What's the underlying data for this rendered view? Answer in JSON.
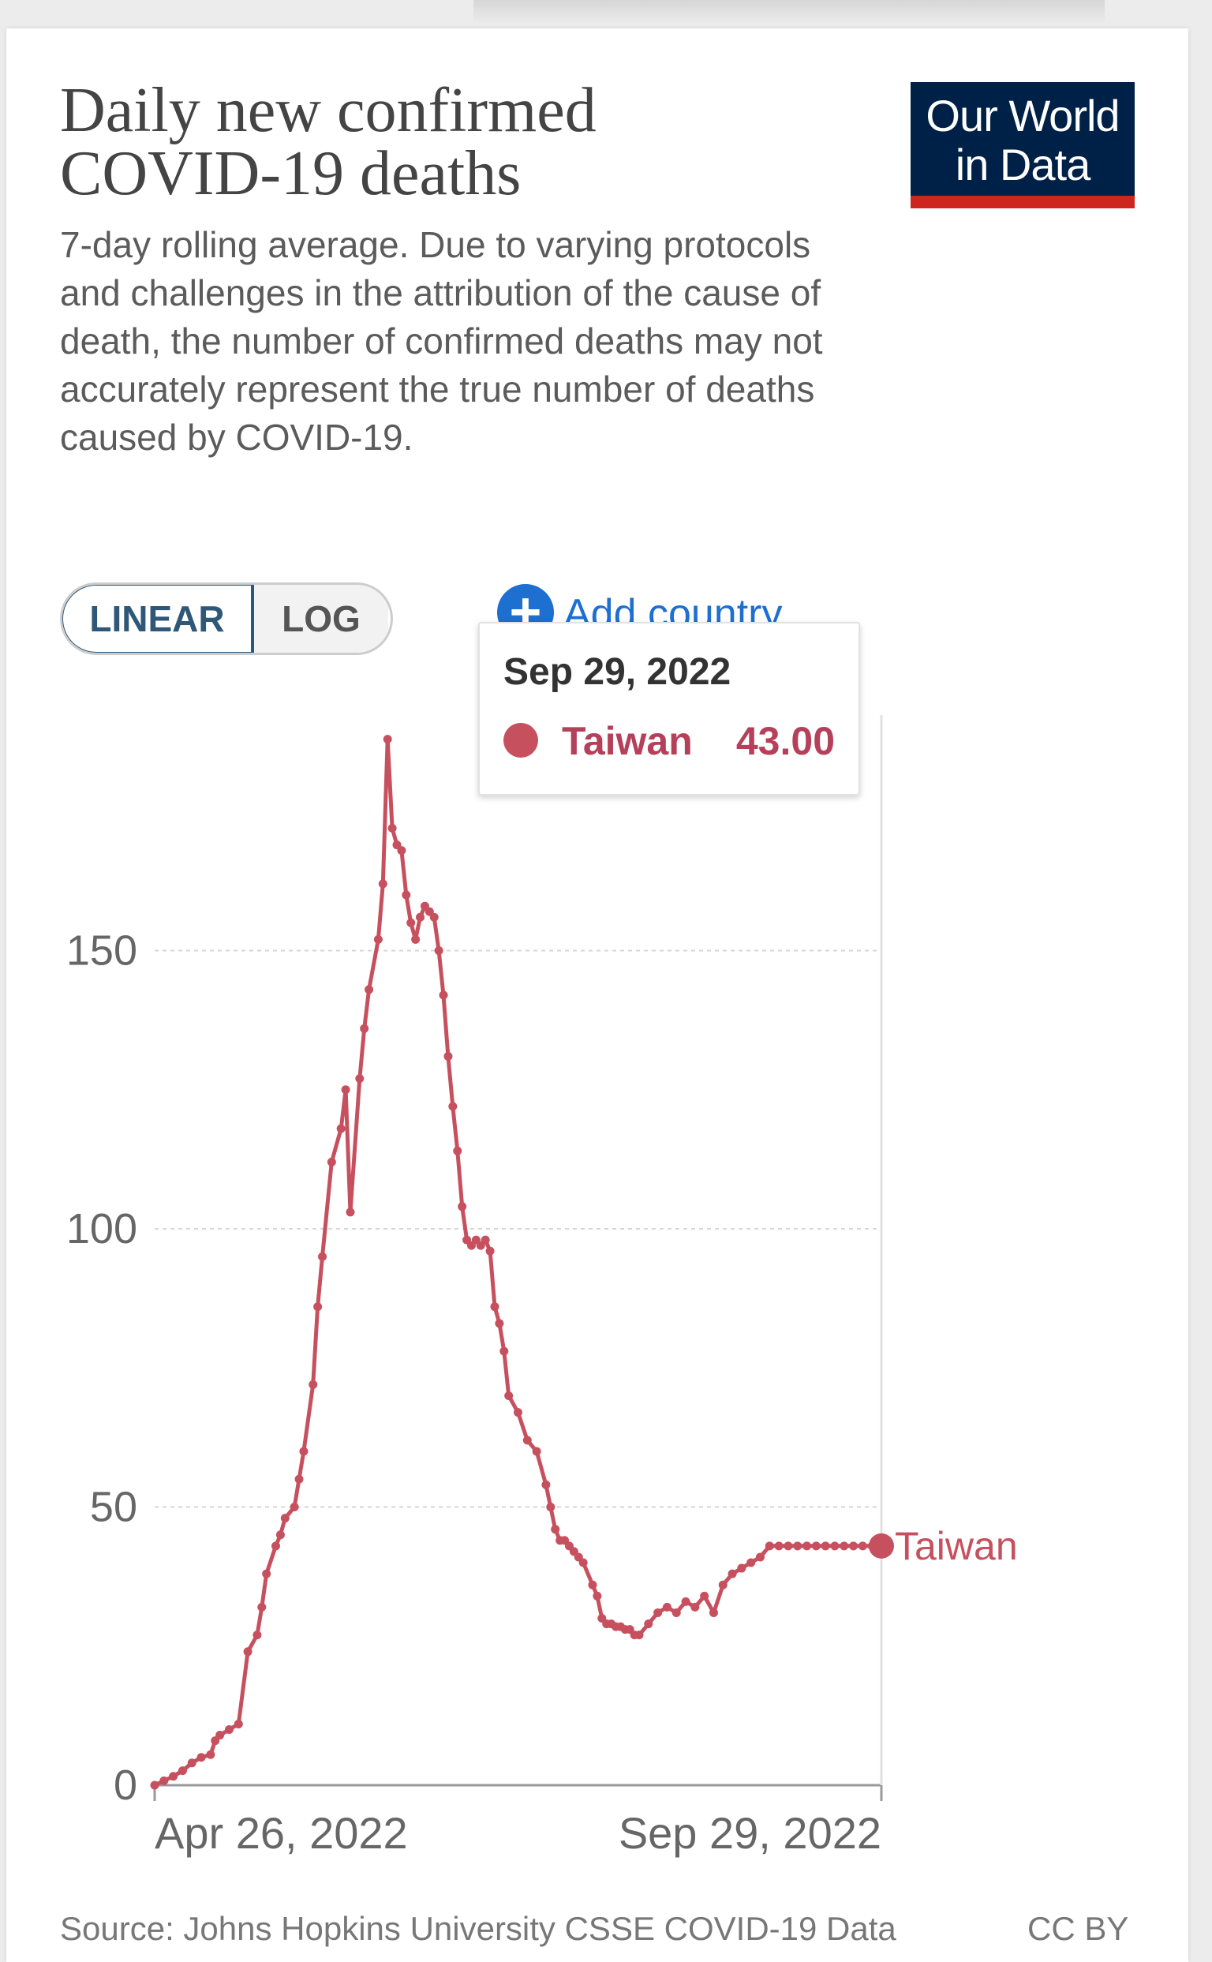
{
  "header": {
    "title_line1": "Daily new confirmed",
    "title_line2": "COVID-19 deaths",
    "subtitle": "7-day rolling average. Due to varying protocols and challenges in the attribution of the cause of death, the number of confirmed deaths may not accurately represent the true number of deaths caused by COVID-19.",
    "logo_line1": "Our World",
    "logo_line2": "in Data"
  },
  "controls": {
    "linear_label": "LINEAR",
    "log_label": "LOG",
    "add_country_label": "Add country"
  },
  "tooltip": {
    "date": "Sep 29, 2022",
    "country": "Taiwan",
    "value": "43.00"
  },
  "footer": {
    "source": "Source: Johns Hopkins University CSSE COVID-19 Data",
    "license": "CC BY"
  },
  "colors": {
    "series": "#c7505f",
    "accent_blue": "#1d6fd0",
    "logo_bg": "#002147",
    "logo_bar": "#ce261e"
  },
  "chart_data": {
    "type": "line",
    "title": "Daily new confirmed COVID-19 deaths",
    "xlabel": "",
    "ylabel": "",
    "ylim": [
      0,
      190
    ],
    "y_ticks": [
      0,
      50,
      100,
      150
    ],
    "y_tick_labels": [
      "0",
      "50",
      "100",
      "150"
    ],
    "x_tick_labels": [
      "Apr 26, 2022",
      "Sep 29, 2022"
    ],
    "x_range_days": [
      0,
      156
    ],
    "grid": true,
    "series": [
      {
        "name": "Taiwan",
        "label": "Taiwan",
        "x": [
          0,
          2,
          4,
          6,
          8,
          10,
          12,
          13,
          14,
          16,
          18,
          20,
          22,
          23,
          24,
          26,
          27,
          28,
          30,
          31,
          32,
          34,
          35,
          36,
          38,
          40,
          41,
          42,
          44,
          45,
          46,
          48,
          49,
          50,
          51,
          52,
          53,
          54,
          55,
          56,
          57,
          58,
          59,
          60,
          61,
          62,
          63,
          64,
          65,
          66,
          67,
          68,
          69,
          70,
          71,
          72,
          73,
          74,
          75,
          76,
          78,
          80,
          82,
          84,
          85,
          86,
          87,
          88,
          89,
          90,
          91,
          92,
          94,
          95,
          96,
          97,
          98,
          99,
          100,
          101,
          102,
          103,
          104,
          106,
          108,
          110,
          112,
          114,
          116,
          118,
          120,
          122,
          124,
          126,
          128,
          130,
          132,
          134,
          136,
          138,
          140,
          142,
          144,
          146,
          148,
          150,
          152,
          154,
          156
        ],
        "y": [
          0,
          0.8,
          1.6,
          2.6,
          4,
          5,
          5.5,
          8,
          9,
          10,
          11,
          24,
          27,
          32,
          38,
          43,
          45,
          48,
          50,
          55,
          60,
          72,
          86,
          95,
          112,
          118,
          125,
          103,
          127,
          136,
          143,
          152,
          162,
          188,
          172,
          169,
          168,
          160,
          155,
          152,
          156,
          158,
          157,
          156,
          150,
          142,
          131,
          122,
          114,
          104,
          98,
          97,
          98,
          97,
          98,
          96,
          86,
          83,
          78,
          70,
          67,
          62,
          60,
          54,
          50,
          46,
          44,
          44,
          43,
          42,
          41,
          40,
          36,
          34,
          30,
          29,
          29,
          28.5,
          28.5,
          28,
          28,
          27,
          27,
          29,
          31,
          32,
          31,
          33,
          32,
          34,
          31,
          36,
          38,
          39,
          40,
          41,
          43,
          43,
          43,
          43,
          43,
          43,
          43,
          43,
          43,
          43,
          43,
          43,
          43
        ]
      }
    ]
  }
}
